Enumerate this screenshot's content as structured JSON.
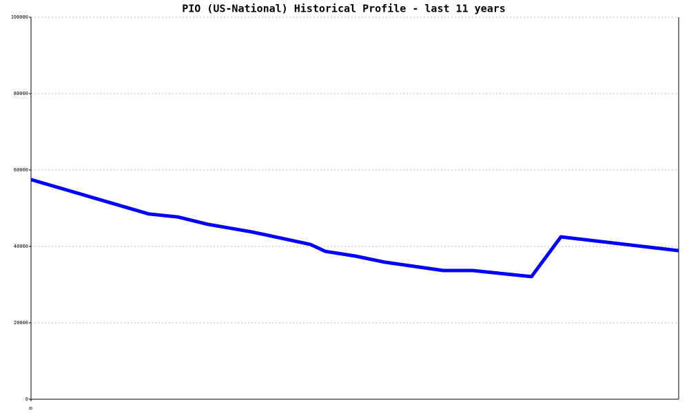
{
  "chart_data": {
    "type": "line",
    "title": "PIO (US-National) Historical Profile - last 11 years",
    "x": [
      0,
      24,
      30,
      36,
      45,
      57,
      60,
      66,
      72,
      84,
      90,
      102,
      108,
      132
    ],
    "series": [
      {
        "color": "#0000ff",
        "values": [
          57500,
          48500,
          47700,
          45800,
          43800,
          40500,
          38700,
          37500,
          35900,
          33700,
          33700,
          32100,
          42500,
          38900
        ]
      }
    ],
    "xlim": [
      0,
      132
    ],
    "xticks": [
      0
    ],
    "ylim": [
      0,
      100000
    ],
    "yticks": [
      0,
      20000,
      40000,
      60000,
      80000,
      100000
    ],
    "grid": true
  }
}
